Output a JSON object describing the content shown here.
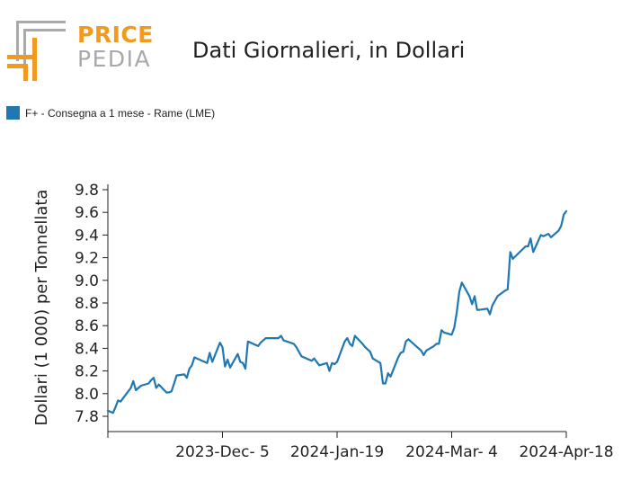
{
  "logo": {
    "text_top": "PRICE",
    "text_bottom": "PEDIA",
    "orange": "#f39a1e",
    "gray": "#a9a9a9"
  },
  "chart_data": {
    "type": "line",
    "title": "Dati Giornalieri, in Dollari",
    "ylabel": "Dollari (1 000) per Tonnellata",
    "xlabel": "",
    "ylim": [
      7.7,
      9.8
    ],
    "yticks": [
      "7.8",
      "8.0",
      "8.2",
      "8.4",
      "8.6",
      "8.8",
      "9.0",
      "9.2",
      "9.4",
      "9.6",
      "9.8"
    ],
    "xticks": [
      "2023-Dec- 5",
      "2024-Jan-19",
      "2024-Mar- 4",
      "2024-Apr-18"
    ],
    "xtick_dates": [
      "2023-10-21",
      "2023-12-05",
      "2024-01-19",
      "2024-03-04",
      "2024-04-18"
    ],
    "legend_position": "top-left",
    "series": [
      {
        "name": "F+ - Consegna a 1 mese - Rame (LME)",
        "color": "#1f77b4",
        "x": [
          "2023-10-21",
          "2023-10-23",
          "2023-10-24",
          "2023-10-25",
          "2023-10-26",
          "2023-10-27",
          "2023-10-30",
          "2023-10-31",
          "2023-11-01",
          "2023-11-02",
          "2023-11-03",
          "2023-11-06",
          "2023-11-07",
          "2023-11-08",
          "2023-11-09",
          "2023-11-10",
          "2023-11-13",
          "2023-11-14",
          "2023-11-15",
          "2023-11-16",
          "2023-11-17",
          "2023-11-20",
          "2023-11-21",
          "2023-11-22",
          "2023-11-23",
          "2023-11-24",
          "2023-11-27",
          "2023-11-28",
          "2023-11-29",
          "2023-11-30",
          "2023-12-01",
          "2023-12-04",
          "2023-12-05",
          "2023-12-06",
          "2023-12-07",
          "2023-12-08",
          "2023-12-11",
          "2023-12-12",
          "2023-12-13",
          "2023-12-14",
          "2023-12-15",
          "2023-12-18",
          "2023-12-19",
          "2023-12-20",
          "2023-12-21",
          "2023-12-22",
          "2023-12-27",
          "2023-12-28",
          "2023-12-29",
          "2024-01-02",
          "2024-01-03",
          "2024-01-04",
          "2024-01-05",
          "2024-01-08",
          "2024-01-09",
          "2024-01-10",
          "2024-01-11",
          "2024-01-12",
          "2024-01-15",
          "2024-01-16",
          "2024-01-17",
          "2024-01-18",
          "2024-01-19",
          "2024-01-22",
          "2024-01-23",
          "2024-01-24",
          "2024-01-25",
          "2024-01-26",
          "2024-01-29",
          "2024-01-30",
          "2024-01-31",
          "2024-02-01",
          "2024-02-02",
          "2024-02-05",
          "2024-02-06",
          "2024-02-07",
          "2024-02-08",
          "2024-02-09",
          "2024-02-12",
          "2024-02-13",
          "2024-02-14",
          "2024-02-15",
          "2024-02-16",
          "2024-02-19",
          "2024-02-20",
          "2024-02-21",
          "2024-02-22",
          "2024-02-23",
          "2024-02-26",
          "2024-02-27",
          "2024-02-28",
          "2024-02-29",
          "2024-03-01",
          "2024-03-04",
          "2024-03-05",
          "2024-03-06",
          "2024-03-07",
          "2024-03-08",
          "2024-03-11",
          "2024-03-12",
          "2024-03-13",
          "2024-03-14",
          "2024-03-15",
          "2024-03-18",
          "2024-03-19",
          "2024-03-20",
          "2024-03-21",
          "2024-03-22",
          "2024-03-25",
          "2024-03-26",
          "2024-03-27",
          "2024-03-28",
          "2024-04-02",
          "2024-04-03",
          "2024-04-04",
          "2024-04-05",
          "2024-04-08",
          "2024-04-09",
          "2024-04-10",
          "2024-04-11",
          "2024-04-12",
          "2024-04-15",
          "2024-04-16",
          "2024-04-17",
          "2024-04-18"
        ],
        "y": [
          7.85,
          7.83,
          7.88,
          7.94,
          7.93,
          7.96,
          8.05,
          8.11,
          8.03,
          8.05,
          8.07,
          8.09,
          8.12,
          8.14,
          8.05,
          8.08,
          8.01,
          8.01,
          8.02,
          8.09,
          8.16,
          8.17,
          8.14,
          8.22,
          8.25,
          8.32,
          8.29,
          8.28,
          8.27,
          8.36,
          8.28,
          8.45,
          8.41,
          8.24,
          8.3,
          8.23,
          8.35,
          8.28,
          8.27,
          8.22,
          8.46,
          8.43,
          8.42,
          8.45,
          8.47,
          8.49,
          8.49,
          8.51,
          8.47,
          8.44,
          8.41,
          8.37,
          8.33,
          8.3,
          8.29,
          8.31,
          8.28,
          8.25,
          8.27,
          8.2,
          8.27,
          8.26,
          8.28,
          8.46,
          8.49,
          8.44,
          8.42,
          8.51,
          8.44,
          8.41,
          8.39,
          8.37,
          8.31,
          8.27,
          8.09,
          8.09,
          8.18,
          8.15,
          8.32,
          8.36,
          8.37,
          8.46,
          8.48,
          8.42,
          8.4,
          8.38,
          8.34,
          8.38,
          8.42,
          8.44,
          8.44,
          8.56,
          8.54,
          8.52,
          8.58,
          8.72,
          8.9,
          8.98,
          8.86,
          8.79,
          8.86,
          8.74,
          8.74,
          8.75,
          8.7,
          8.78,
          8.82,
          8.86,
          8.91,
          8.92,
          9.25,
          9.19,
          9.3,
          9.3,
          9.37,
          9.25,
          9.4,
          9.39,
          9.4,
          9.41,
          9.38,
          9.44,
          9.48,
          9.58,
          9.61
        ]
      }
    ]
  }
}
